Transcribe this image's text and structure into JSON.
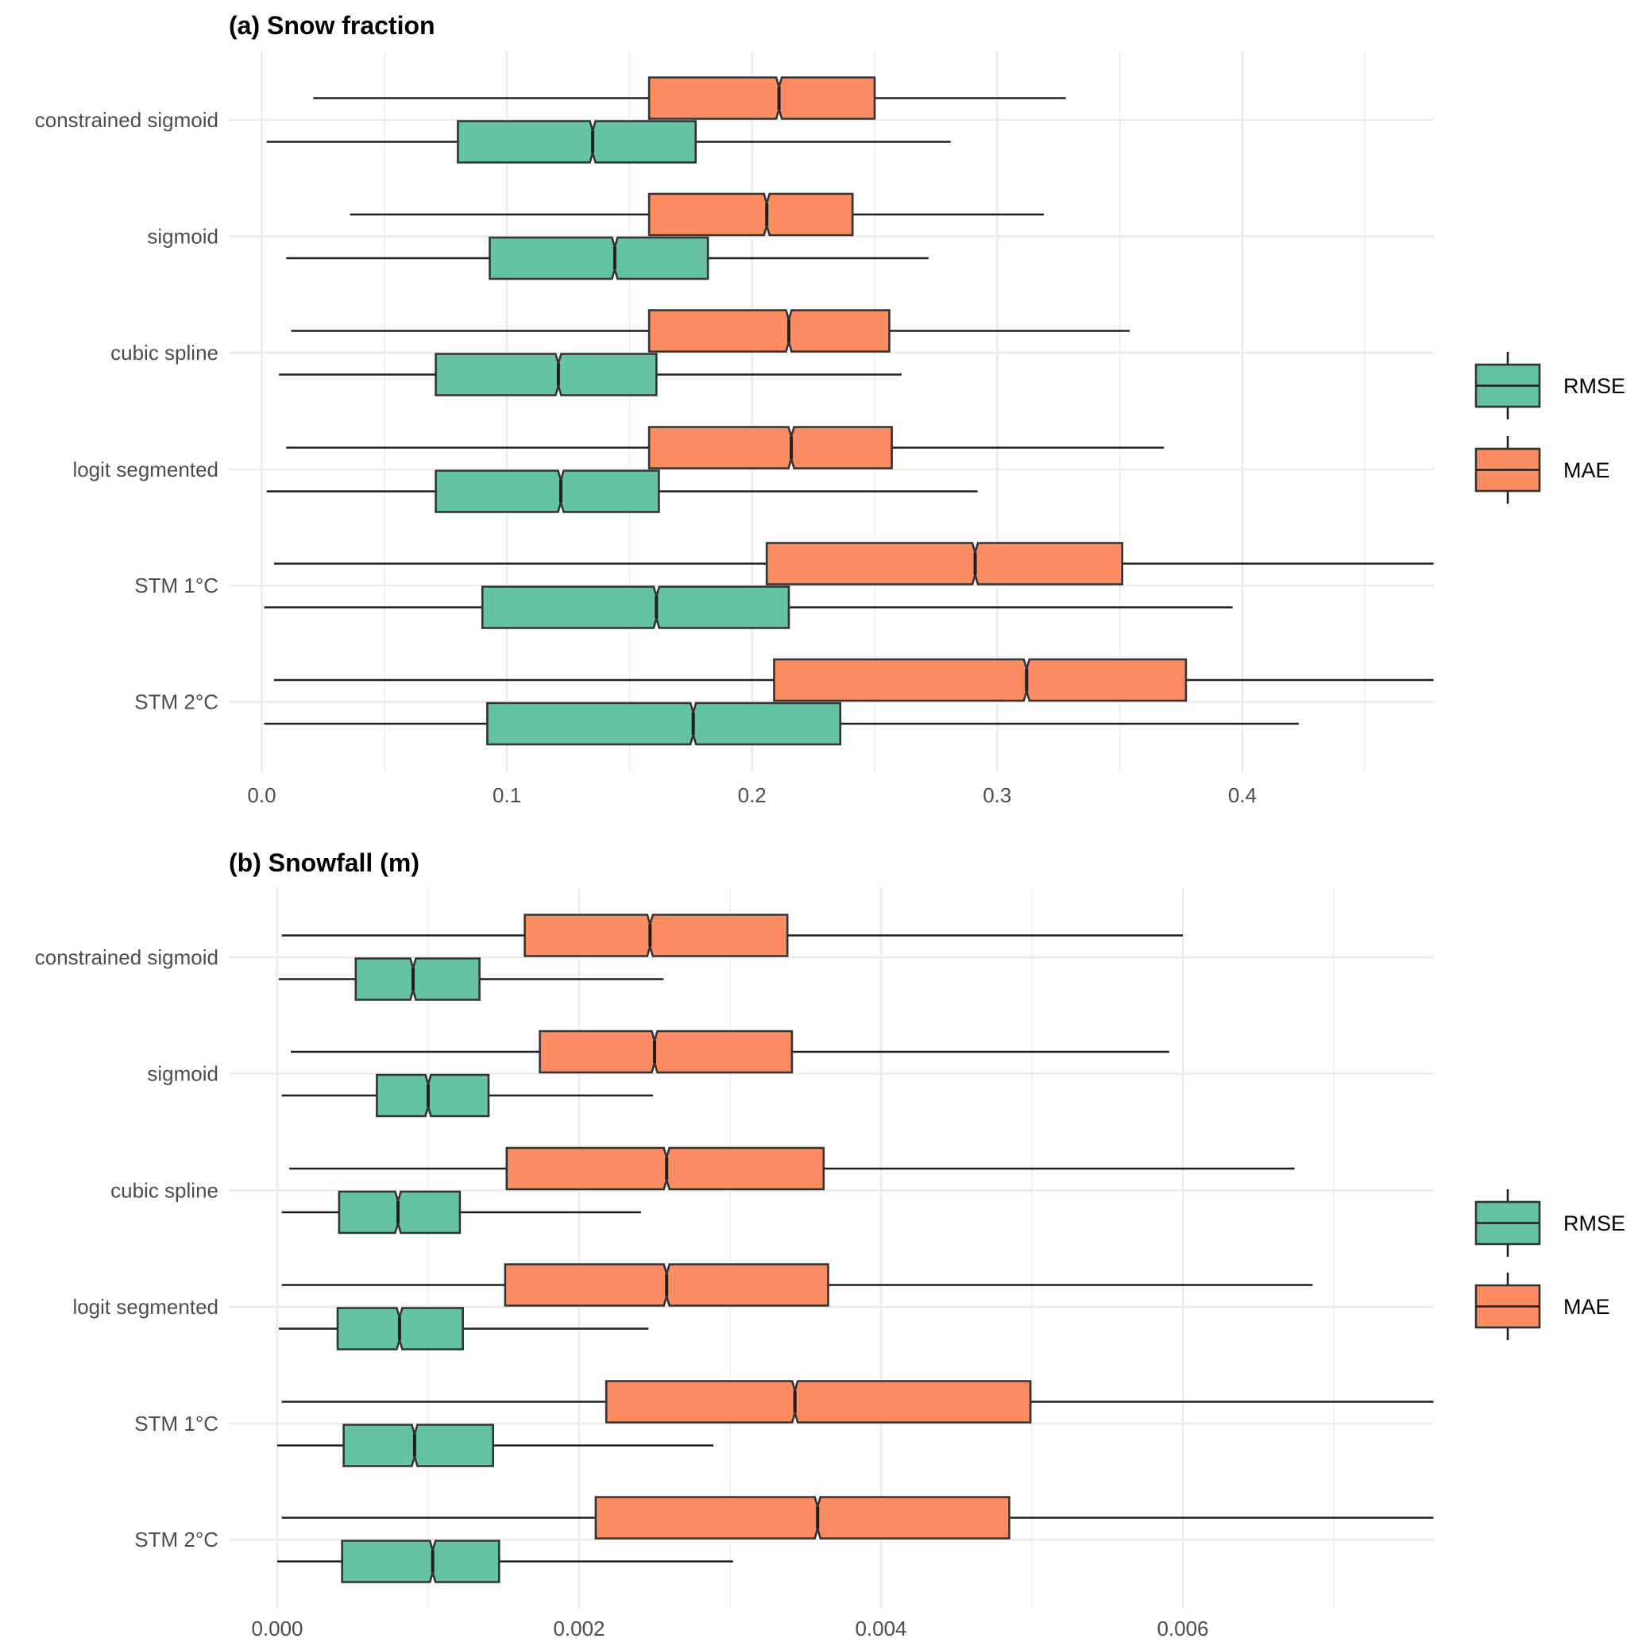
{
  "chart_data": [
    {
      "type": "boxplot",
      "orientation": "horizontal",
      "notched": true,
      "title": "(a) Snow fraction",
      "xlabel": "",
      "ylabel": "",
      "xlim": [
        0,
        0.478
      ],
      "x_ticks": [
        0.0,
        0.1,
        0.2,
        0.3,
        0.4
      ],
      "x_tick_labels": [
        "0.0",
        "0.1",
        "0.2",
        "0.3",
        "0.4"
      ],
      "x_minor_ticks": [
        0.05,
        0.15,
        0.25,
        0.35,
        0.45
      ],
      "grid": true,
      "legend_position": "right",
      "categories": [
        "constrained sigmoid",
        "sigmoid",
        "cubic spline",
        "logit segmented",
        "STM 1°C",
        "STM 2°C"
      ],
      "series": [
        {
          "name": "MAE",
          "color": "#FC8D62",
          "boxes": [
            {
              "whisker_low": 0.021,
              "q1": 0.158,
              "median": 0.211,
              "q3": 0.25,
              "whisker_high": 0.328
            },
            {
              "whisker_low": 0.036,
              "q1": 0.158,
              "median": 0.206,
              "q3": 0.241,
              "whisker_high": 0.319
            },
            {
              "whisker_low": 0.012,
              "q1": 0.158,
              "median": 0.215,
              "q3": 0.256,
              "whisker_high": 0.354
            },
            {
              "whisker_low": 0.01,
              "q1": 0.158,
              "median": 0.216,
              "q3": 0.257,
              "whisker_high": 0.368
            },
            {
              "whisker_low": 0.005,
              "q1": 0.206,
              "median": 0.291,
              "q3": 0.351,
              "whisker_high": 0.478
            },
            {
              "whisker_low": 0.005,
              "q1": 0.209,
              "median": 0.312,
              "q3": 0.377,
              "whisker_high": 0.478
            }
          ]
        },
        {
          "name": "RMSE",
          "color": "#66C2A5",
          "boxes": [
            {
              "whisker_low": 0.002,
              "q1": 0.08,
              "median": 0.135,
              "q3": 0.177,
              "whisker_high": 0.281
            },
            {
              "whisker_low": 0.01,
              "q1": 0.093,
              "median": 0.144,
              "q3": 0.182,
              "whisker_high": 0.272
            },
            {
              "whisker_low": 0.007,
              "q1": 0.071,
              "median": 0.121,
              "q3": 0.161,
              "whisker_high": 0.261
            },
            {
              "whisker_low": 0.002,
              "q1": 0.071,
              "median": 0.122,
              "q3": 0.162,
              "whisker_high": 0.292
            },
            {
              "whisker_low": 0.001,
              "q1": 0.09,
              "median": 0.161,
              "q3": 0.215,
              "whisker_high": 0.396
            },
            {
              "whisker_low": 0.001,
              "q1": 0.092,
              "median": 0.176,
              "q3": 0.236,
              "whisker_high": 0.423
            }
          ]
        }
      ],
      "legend": [
        {
          "name": "RMSE",
          "color": "#66C2A5"
        },
        {
          "name": "MAE",
          "color": "#FC8D62"
        }
      ]
    },
    {
      "type": "boxplot",
      "orientation": "horizontal",
      "notched": true,
      "title": "(b) Snowfall (m)",
      "xlabel": "",
      "ylabel": "",
      "xlim": [
        0,
        0.00766
      ],
      "x_ticks": [
        0.0,
        0.002,
        0.004,
        0.006
      ],
      "x_tick_labels": [
        "0.000",
        "0.002",
        "0.004",
        "0.006"
      ],
      "x_minor_ticks": [
        0.001,
        0.003,
        0.005,
        0.007
      ],
      "grid": true,
      "legend_position": "right",
      "categories": [
        "constrained sigmoid",
        "sigmoid",
        "cubic spline",
        "logit segmented",
        "STM 1°C",
        "STM 2°C"
      ],
      "series": [
        {
          "name": "MAE",
          "color": "#FC8D62",
          "boxes": [
            {
              "whisker_low": 3e-05,
              "q1": 0.00164,
              "median": 0.00247,
              "q3": 0.00338,
              "whisker_high": 0.006
            },
            {
              "whisker_low": 9e-05,
              "q1": 0.00174,
              "median": 0.0025,
              "q3": 0.00341,
              "whisker_high": 0.00591
            },
            {
              "whisker_low": 8e-05,
              "q1": 0.00152,
              "median": 0.00258,
              "q3": 0.00362,
              "whisker_high": 0.00674
            },
            {
              "whisker_low": 3e-05,
              "q1": 0.00151,
              "median": 0.00258,
              "q3": 0.00365,
              "whisker_high": 0.00686
            },
            {
              "whisker_low": 3e-05,
              "q1": 0.00218,
              "median": 0.00343,
              "q3": 0.00499,
              "whisker_high": 0.00766
            },
            {
              "whisker_low": 3e-05,
              "q1": 0.00211,
              "median": 0.00358,
              "q3": 0.00485,
              "whisker_high": 0.00766
            }
          ]
        },
        {
          "name": "RMSE",
          "color": "#66C2A5",
          "boxes": [
            {
              "whisker_low": 1e-05,
              "q1": 0.00052,
              "median": 0.0009,
              "q3": 0.00134,
              "whisker_high": 0.00256
            },
            {
              "whisker_low": 3e-05,
              "q1": 0.00066,
              "median": 0.001,
              "q3": 0.0014,
              "whisker_high": 0.00249
            },
            {
              "whisker_low": 3e-05,
              "q1": 0.00041,
              "median": 0.0008,
              "q3": 0.00121,
              "whisker_high": 0.00241
            },
            {
              "whisker_low": 1e-05,
              "q1": 0.0004,
              "median": 0.00081,
              "q3": 0.00123,
              "whisker_high": 0.00246
            },
            {
              "whisker_low": 0.0,
              "q1": 0.00044,
              "median": 0.00091,
              "q3": 0.00143,
              "whisker_high": 0.00289
            },
            {
              "whisker_low": 0.0,
              "q1": 0.00043,
              "median": 0.00103,
              "q3": 0.00147,
              "whisker_high": 0.00302
            }
          ]
        }
      ],
      "legend": [
        {
          "name": "RMSE",
          "color": "#66C2A5"
        },
        {
          "name": "MAE",
          "color": "#FC8D62"
        }
      ]
    }
  ]
}
